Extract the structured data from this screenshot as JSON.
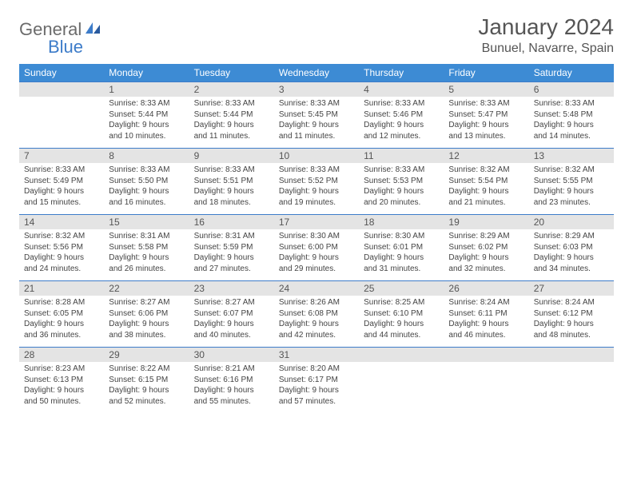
{
  "brand": {
    "part1": "General",
    "part2": "Blue"
  },
  "title": "January 2024",
  "location": "Bunuel, Navarre, Spain",
  "colors": {
    "header_bg": "#3d8bd4",
    "header_text": "#ffffff",
    "band_bg": "#e4e4e4",
    "rule": "#3d7cc9",
    "logo_gray": "#6b6b6b",
    "logo_blue": "#3d7cc9"
  },
  "dow": [
    "Sunday",
    "Monday",
    "Tuesday",
    "Wednesday",
    "Thursday",
    "Friday",
    "Saturday"
  ],
  "weeks": [
    [
      null,
      {
        "n": "1",
        "sr": "Sunrise: 8:33 AM",
        "ss": "Sunset: 5:44 PM",
        "d1": "Daylight: 9 hours",
        "d2": "and 10 minutes."
      },
      {
        "n": "2",
        "sr": "Sunrise: 8:33 AM",
        "ss": "Sunset: 5:44 PM",
        "d1": "Daylight: 9 hours",
        "d2": "and 11 minutes."
      },
      {
        "n": "3",
        "sr": "Sunrise: 8:33 AM",
        "ss": "Sunset: 5:45 PM",
        "d1": "Daylight: 9 hours",
        "d2": "and 11 minutes."
      },
      {
        "n": "4",
        "sr": "Sunrise: 8:33 AM",
        "ss": "Sunset: 5:46 PM",
        "d1": "Daylight: 9 hours",
        "d2": "and 12 minutes."
      },
      {
        "n": "5",
        "sr": "Sunrise: 8:33 AM",
        "ss": "Sunset: 5:47 PM",
        "d1": "Daylight: 9 hours",
        "d2": "and 13 minutes."
      },
      {
        "n": "6",
        "sr": "Sunrise: 8:33 AM",
        "ss": "Sunset: 5:48 PM",
        "d1": "Daylight: 9 hours",
        "d2": "and 14 minutes."
      }
    ],
    [
      {
        "n": "7",
        "sr": "Sunrise: 8:33 AM",
        "ss": "Sunset: 5:49 PM",
        "d1": "Daylight: 9 hours",
        "d2": "and 15 minutes."
      },
      {
        "n": "8",
        "sr": "Sunrise: 8:33 AM",
        "ss": "Sunset: 5:50 PM",
        "d1": "Daylight: 9 hours",
        "d2": "and 16 minutes."
      },
      {
        "n": "9",
        "sr": "Sunrise: 8:33 AM",
        "ss": "Sunset: 5:51 PM",
        "d1": "Daylight: 9 hours",
        "d2": "and 18 minutes."
      },
      {
        "n": "10",
        "sr": "Sunrise: 8:33 AM",
        "ss": "Sunset: 5:52 PM",
        "d1": "Daylight: 9 hours",
        "d2": "and 19 minutes."
      },
      {
        "n": "11",
        "sr": "Sunrise: 8:33 AM",
        "ss": "Sunset: 5:53 PM",
        "d1": "Daylight: 9 hours",
        "d2": "and 20 minutes."
      },
      {
        "n": "12",
        "sr": "Sunrise: 8:32 AM",
        "ss": "Sunset: 5:54 PM",
        "d1": "Daylight: 9 hours",
        "d2": "and 21 minutes."
      },
      {
        "n": "13",
        "sr": "Sunrise: 8:32 AM",
        "ss": "Sunset: 5:55 PM",
        "d1": "Daylight: 9 hours",
        "d2": "and 23 minutes."
      }
    ],
    [
      {
        "n": "14",
        "sr": "Sunrise: 8:32 AM",
        "ss": "Sunset: 5:56 PM",
        "d1": "Daylight: 9 hours",
        "d2": "and 24 minutes."
      },
      {
        "n": "15",
        "sr": "Sunrise: 8:31 AM",
        "ss": "Sunset: 5:58 PM",
        "d1": "Daylight: 9 hours",
        "d2": "and 26 minutes."
      },
      {
        "n": "16",
        "sr": "Sunrise: 8:31 AM",
        "ss": "Sunset: 5:59 PM",
        "d1": "Daylight: 9 hours",
        "d2": "and 27 minutes."
      },
      {
        "n": "17",
        "sr": "Sunrise: 8:30 AM",
        "ss": "Sunset: 6:00 PM",
        "d1": "Daylight: 9 hours",
        "d2": "and 29 minutes."
      },
      {
        "n": "18",
        "sr": "Sunrise: 8:30 AM",
        "ss": "Sunset: 6:01 PM",
        "d1": "Daylight: 9 hours",
        "d2": "and 31 minutes."
      },
      {
        "n": "19",
        "sr": "Sunrise: 8:29 AM",
        "ss": "Sunset: 6:02 PM",
        "d1": "Daylight: 9 hours",
        "d2": "and 32 minutes."
      },
      {
        "n": "20",
        "sr": "Sunrise: 8:29 AM",
        "ss": "Sunset: 6:03 PM",
        "d1": "Daylight: 9 hours",
        "d2": "and 34 minutes."
      }
    ],
    [
      {
        "n": "21",
        "sr": "Sunrise: 8:28 AM",
        "ss": "Sunset: 6:05 PM",
        "d1": "Daylight: 9 hours",
        "d2": "and 36 minutes."
      },
      {
        "n": "22",
        "sr": "Sunrise: 8:27 AM",
        "ss": "Sunset: 6:06 PM",
        "d1": "Daylight: 9 hours",
        "d2": "and 38 minutes."
      },
      {
        "n": "23",
        "sr": "Sunrise: 8:27 AM",
        "ss": "Sunset: 6:07 PM",
        "d1": "Daylight: 9 hours",
        "d2": "and 40 minutes."
      },
      {
        "n": "24",
        "sr": "Sunrise: 8:26 AM",
        "ss": "Sunset: 6:08 PM",
        "d1": "Daylight: 9 hours",
        "d2": "and 42 minutes."
      },
      {
        "n": "25",
        "sr": "Sunrise: 8:25 AM",
        "ss": "Sunset: 6:10 PM",
        "d1": "Daylight: 9 hours",
        "d2": "and 44 minutes."
      },
      {
        "n": "26",
        "sr": "Sunrise: 8:24 AM",
        "ss": "Sunset: 6:11 PM",
        "d1": "Daylight: 9 hours",
        "d2": "and 46 minutes."
      },
      {
        "n": "27",
        "sr": "Sunrise: 8:24 AM",
        "ss": "Sunset: 6:12 PM",
        "d1": "Daylight: 9 hours",
        "d2": "and 48 minutes."
      }
    ],
    [
      {
        "n": "28",
        "sr": "Sunrise: 8:23 AM",
        "ss": "Sunset: 6:13 PM",
        "d1": "Daylight: 9 hours",
        "d2": "and 50 minutes."
      },
      {
        "n": "29",
        "sr": "Sunrise: 8:22 AM",
        "ss": "Sunset: 6:15 PM",
        "d1": "Daylight: 9 hours",
        "d2": "and 52 minutes."
      },
      {
        "n": "30",
        "sr": "Sunrise: 8:21 AM",
        "ss": "Sunset: 6:16 PM",
        "d1": "Daylight: 9 hours",
        "d2": "and 55 minutes."
      },
      {
        "n": "31",
        "sr": "Sunrise: 8:20 AM",
        "ss": "Sunset: 6:17 PM",
        "d1": "Daylight: 9 hours",
        "d2": "and 57 minutes."
      },
      null,
      null,
      null
    ]
  ]
}
